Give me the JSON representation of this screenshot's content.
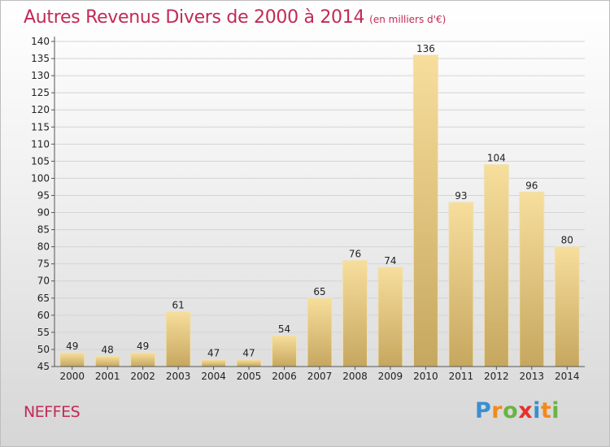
{
  "title": "Autres Revenus Divers de 2000 à 2014",
  "unit_note": "(en milliers d'€)",
  "location": "NEFFES",
  "logo": {
    "text": "Proxiti",
    "letters": [
      {
        "char": "P",
        "color": "#3a8fd1"
      },
      {
        "char": "r",
        "color": "#f28a1c"
      },
      {
        "char": "o",
        "color": "#6ab344"
      },
      {
        "char": "x",
        "color": "#e7302a"
      },
      {
        "char": "i",
        "color": "#3a8fd1"
      },
      {
        "char": "t",
        "color": "#f28a1c"
      },
      {
        "char": "i",
        "color": "#6ab344"
      }
    ]
  },
  "colors": {
    "title": "#c22a56",
    "bar_light": "#f6dc98",
    "bar_dark": "#c9ab63",
    "grid": "#d4d4d4"
  },
  "chart_data": {
    "type": "bar",
    "title": "Autres Revenus Divers de 2000 à 2014",
    "subtitle": "(en milliers d'€)",
    "categories": [
      "2000",
      "2001",
      "2002",
      "2003",
      "2004",
      "2005",
      "2006",
      "2007",
      "2008",
      "2009",
      "2010",
      "2011",
      "2012",
      "2013",
      "2014"
    ],
    "values": [
      49,
      48,
      49,
      61,
      47,
      47,
      54,
      65,
      76,
      74,
      136,
      93,
      104,
      96,
      80
    ],
    "ylim": [
      45,
      140
    ],
    "yticks": [
      45,
      50,
      55,
      60,
      65,
      70,
      75,
      80,
      85,
      90,
      95,
      100,
      105,
      110,
      115,
      120,
      125,
      130,
      135,
      140
    ],
    "grid": true,
    "xlabel": "",
    "ylabel": ""
  }
}
